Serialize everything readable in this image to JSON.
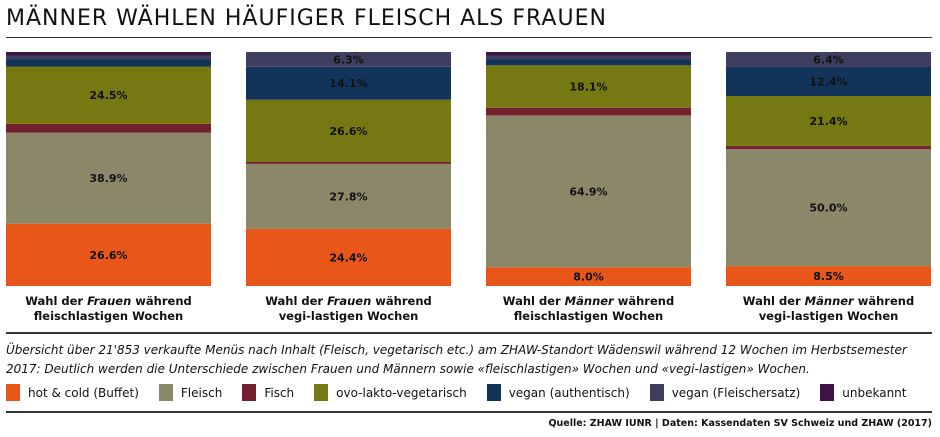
{
  "title": "MÄNNER WÄHLEN HÄUFIGER FLEISCH ALS FRAUEN",
  "caption": "Übersicht über 21'853 verkaufte Menüs nach Inhalt (Fleisch, vegetarisch etc.) am ZHAW-Standort Wädenswil während 12 Wochen im Herbstsemester 2017: Deutlich werden die Unterschiede zwischen Frauen und Männern sowie «fleischlastigen» Wochen und «vegi-lastigen» Wochen.",
  "source": "Quelle: ZHAW IUNR | Daten: Kassendaten SV Schweiz und ZHAW (2017)",
  "chart_data": {
    "type": "bar",
    "stacked": true,
    "title": "MÄNNER WÄHLEN HÄUFIGER FLEISCH ALS FRAUEN",
    "categories": [
      {
        "pre": "Wahl der ",
        "em": "Frauen",
        "post": " während",
        "line2": "fleischlastigen Wochen"
      },
      {
        "pre": "Wahl der ",
        "em": "Frauen",
        "post": " während",
        "line2": "vegi-lastigen Wochen"
      },
      {
        "pre": "Wahl der ",
        "em": "Männer",
        "post": " während",
        "line2": "fleischlastigen Wochen"
      },
      {
        "pre": "Wahl der ",
        "em": "Männer",
        "post": " während",
        "line2": "vegi-lastigen Wochen"
      }
    ],
    "ylim": [
      0,
      100
    ],
    "series": [
      {
        "name": "hot & cold (Buffet)",
        "color": "#e8561a",
        "values": [
          26.6,
          24.4,
          8.0,
          8.5
        ],
        "labeled": true
      },
      {
        "name": "Fleisch",
        "color": "#8b8769",
        "values": [
          38.9,
          27.8,
          64.9,
          50.0
        ],
        "labeled": true
      },
      {
        "name": "Fisch",
        "color": "#75202e",
        "values": [
          3.8,
          0.8,
          3.3,
          1.3
        ],
        "labeled": false
      },
      {
        "name": "ovo-lakto-vegetarisch",
        "color": "#767812",
        "values": [
          24.5,
          26.6,
          18.1,
          21.4
        ],
        "labeled": true
      },
      {
        "name": "vegan (authentisch)",
        "color": "#13345a",
        "values": [
          3.0,
          14.1,
          2.5,
          12.4
        ],
        "labeled": [
          false,
          true,
          false,
          true
        ]
      },
      {
        "name": "vegan (Fleischersatz)",
        "color": "#3e3f5e",
        "values": [
          1.7,
          6.3,
          1.7,
          6.4
        ],
        "labeled": [
          false,
          true,
          false,
          true
        ]
      },
      {
        "name": "unbekannt",
        "color": "#3d1545",
        "values": [
          1.5,
          0,
          1.5,
          0
        ],
        "labeled": false
      }
    ]
  }
}
